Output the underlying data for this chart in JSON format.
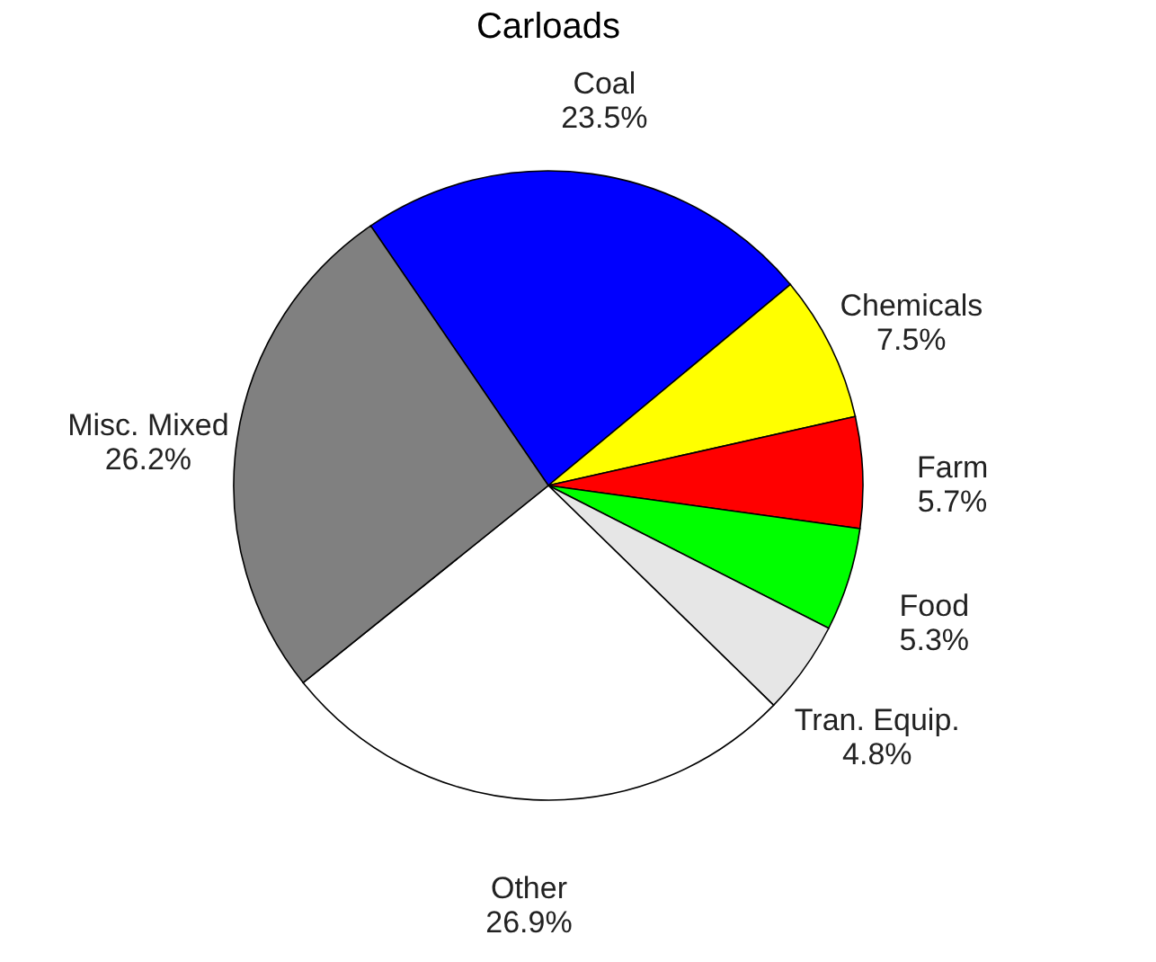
{
  "chart_data": {
    "type": "pie",
    "title": "Carloads",
    "categories": [
      "Coal",
      "Chemicals",
      "Farm",
      "Food",
      "Tran. Equip.",
      "Other",
      "Misc. Mixed"
    ],
    "values": [
      23.5,
      7.5,
      5.7,
      5.3,
      4.8,
      26.9,
      26.2
    ],
    "value_labels": [
      "23.5%",
      "7.5%",
      "5.7%",
      "5.3%",
      "4.8%",
      "26.9%",
      "26.2%"
    ],
    "colors": [
      "#0000ff",
      "#ffff00",
      "#ff0000",
      "#00ff00",
      "#e6e6e6",
      "#ffffff",
      "#808080"
    ],
    "legend": false
  }
}
